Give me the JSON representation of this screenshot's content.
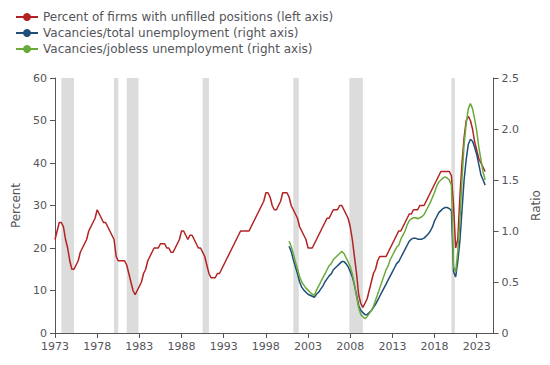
{
  "chart_data": {
    "type": "line",
    "xlabel": null,
    "ylabel": "Percent",
    "y2label": "Ratio",
    "xlim": [
      1973.0,
      2025.0
    ],
    "xticks": [
      1973,
      1978,
      1983,
      1988,
      1993,
      1998,
      2003,
      2008,
      2013,
      2018,
      2023
    ],
    "ylim": [
      0,
      60
    ],
    "yticks": [
      0,
      10,
      20,
      30,
      40,
      50,
      60
    ],
    "y2lim": [
      0,
      2.5
    ],
    "y2ticks": [
      0,
      0.5,
      {
        "value": 1,
        "label": "1.0"
      },
      1.5,
      {
        "value": 2,
        "label": "2.0"
      },
      2.5
    ],
    "grid": false,
    "legend": "upper left",
    "recessions": [
      [
        1973.75,
        1975.25
      ],
      [
        1980.0,
        1980.5
      ],
      [
        1981.5,
        1982.9
      ],
      [
        1990.5,
        1991.25
      ],
      [
        2001.25,
        2001.9
      ],
      [
        2007.9,
        2009.5
      ],
      [
        2020.0,
        2020.4
      ]
    ],
    "series": [
      {
        "name": "Percent of firms with unfilled positions (left axis)",
        "color": "#b22222",
        "axis": "y",
        "x": [
          1973.0,
          1973.25,
          1973.5,
          1973.75,
          1974.0,
          1974.25,
          1974.5,
          1974.75,
          1975.0,
          1975.25,
          1975.5,
          1975.75,
          1976.0,
          1976.25,
          1976.5,
          1976.75,
          1977.0,
          1977.25,
          1977.5,
          1977.75,
          1978.0,
          1978.25,
          1978.5,
          1978.75,
          1979.0,
          1979.25,
          1979.5,
          1979.75,
          1980.0,
          1980.25,
          1980.5,
          1980.75,
          1981.0,
          1981.25,
          1981.5,
          1981.75,
          1982.0,
          1982.25,
          1982.5,
          1982.75,
          1983.0,
          1983.25,
          1983.5,
          1983.75,
          1984.0,
          1984.25,
          1984.5,
          1984.75,
          1985.0,
          1985.25,
          1985.5,
          1985.75,
          1986.0,
          1986.25,
          1986.5,
          1986.75,
          1987.0,
          1987.25,
          1987.5,
          1987.75,
          1988.0,
          1988.25,
          1988.5,
          1988.75,
          1989.0,
          1989.25,
          1989.5,
          1989.75,
          1990.0,
          1990.25,
          1990.5,
          1990.75,
          1991.0,
          1991.25,
          1991.5,
          1991.75,
          1992.0,
          1992.25,
          1992.5,
          1992.75,
          1993.0,
          1993.25,
          1993.5,
          1993.75,
          1994.0,
          1994.25,
          1994.5,
          1994.75,
          1995.0,
          1995.25,
          1995.5,
          1995.75,
          1996.0,
          1996.25,
          1996.5,
          1996.75,
          1997.0,
          1997.25,
          1997.5,
          1997.75,
          1998.0,
          1998.25,
          1998.5,
          1998.75,
          1999.0,
          1999.25,
          1999.5,
          1999.75,
          2000.0,
          2000.25,
          2000.5,
          2000.75,
          2001.0,
          2001.25,
          2001.5,
          2001.75,
          2002.0,
          2002.25,
          2002.5,
          2002.75,
          2003.0,
          2003.25,
          2003.5,
          2003.75,
          2004.0,
          2004.25,
          2004.5,
          2004.75,
          2005.0,
          2005.25,
          2005.5,
          2005.75,
          2006.0,
          2006.25,
          2006.5,
          2006.75,
          2007.0,
          2007.25,
          2007.5,
          2007.75,
          2008.0,
          2008.25,
          2008.5,
          2008.75,
          2009.0,
          2009.25,
          2009.5,
          2009.75,
          2010.0,
          2010.25,
          2010.5,
          2010.75,
          2011.0,
          2011.25,
          2011.5,
          2011.75,
          2012.0,
          2012.25,
          2012.5,
          2012.75,
          2013.0,
          2013.25,
          2013.5,
          2013.75,
          2014.0,
          2014.25,
          2014.5,
          2014.75,
          2015.0,
          2015.25,
          2015.5,
          2015.75,
          2016.0,
          2016.25,
          2016.5,
          2016.75,
          2017.0,
          2017.25,
          2017.5,
          2017.75,
          2018.0,
          2018.25,
          2018.5,
          2018.75,
          2019.0,
          2019.25,
          2019.5,
          2019.75,
          2020.0,
          2020.25,
          2020.5,
          2020.75,
          2021.0,
          2021.25,
          2021.5,
          2021.75,
          2022.0,
          2022.25,
          2022.5,
          2022.75,
          2023.0,
          2023.25,
          2023.5,
          2023.75,
          2024.0
        ],
        "values": [
          22,
          24,
          26,
          26,
          25,
          22,
          20,
          17,
          15,
          15,
          16,
          17,
          19,
          20,
          21,
          22,
          24,
          25,
          26,
          27,
          29,
          28,
          27,
          26,
          26,
          25,
          24,
          23,
          22,
          18,
          17,
          17,
          17,
          17,
          16,
          14,
          12,
          10,
          9,
          10,
          11,
          12,
          14,
          15,
          17,
          18,
          19,
          20,
          20,
          20,
          21,
          21,
          21,
          20,
          20,
          19,
          19,
          20,
          21,
          22,
          24,
          24,
          23,
          22,
          23,
          23,
          22,
          21,
          20,
          20,
          19,
          18,
          16,
          14,
          13,
          13,
          13,
          14,
          14,
          15,
          16,
          17,
          18,
          19,
          20,
          21,
          22,
          23,
          24,
          24,
          24,
          24,
          24,
          25,
          26,
          27,
          28,
          29,
          30,
          31,
          33,
          33,
          32,
          30,
          29,
          29,
          30,
          31,
          33,
          33,
          33,
          32,
          30,
          29,
          28,
          27,
          25,
          24,
          23,
          22,
          20,
          20,
          20,
          21,
          22,
          23,
          24,
          25,
          26,
          27,
          27,
          28,
          29,
          29,
          29,
          30,
          30,
          29,
          28,
          27,
          25,
          22,
          18,
          14,
          9,
          7,
          6,
          7,
          8,
          10,
          12,
          14,
          15,
          17,
          18,
          18,
          18,
          18,
          19,
          20,
          21,
          22,
          23,
          24,
          24,
          25,
          26,
          27,
          28,
          28,
          29,
          29,
          29,
          30,
          30,
          30,
          31,
          32,
          33,
          34,
          35,
          36,
          37,
          38,
          38,
          38,
          38,
          38,
          37,
          30,
          20,
          22,
          32,
          40,
          46,
          50,
          51,
          50,
          48,
          45,
          43,
          41,
          40,
          39,
          38
        ]
      },
      {
        "name": "Vacancies/total unemployment (right axis)",
        "color": "#1f4e79",
        "axis": "y2",
        "x": [
          2000.75,
          2001.0,
          2001.25,
          2001.5,
          2001.75,
          2002.0,
          2002.25,
          2002.5,
          2002.75,
          2003.0,
          2003.25,
          2003.5,
          2003.75,
          2004.0,
          2004.25,
          2004.5,
          2004.75,
          2005.0,
          2005.25,
          2005.5,
          2005.75,
          2006.0,
          2006.25,
          2006.5,
          2006.75,
          2007.0,
          2007.25,
          2007.5,
          2007.75,
          2008.0,
          2008.25,
          2008.5,
          2008.75,
          2009.0,
          2009.25,
          2009.5,
          2009.75,
          2010.0,
          2010.25,
          2010.5,
          2010.75,
          2011.0,
          2011.25,
          2011.5,
          2011.75,
          2012.0,
          2012.25,
          2012.5,
          2012.75,
          2013.0,
          2013.25,
          2013.5,
          2013.75,
          2014.0,
          2014.25,
          2014.5,
          2014.75,
          2015.0,
          2015.25,
          2015.5,
          2015.75,
          2016.0,
          2016.25,
          2016.5,
          2016.75,
          2017.0,
          2017.25,
          2017.5,
          2017.75,
          2018.0,
          2018.25,
          2018.5,
          2018.75,
          2019.0,
          2019.25,
          2019.5,
          2019.75,
          2020.0,
          2020.25,
          2020.5,
          2020.75,
          2021.0,
          2021.25,
          2021.5,
          2021.75,
          2022.0,
          2022.25,
          2022.5,
          2022.75,
          2023.0,
          2023.25,
          2023.5,
          2023.75,
          2024.0
        ],
        "values": [
          0.85,
          0.8,
          0.72,
          0.65,
          0.58,
          0.5,
          0.45,
          0.42,
          0.4,
          0.38,
          0.37,
          0.36,
          0.35,
          0.38,
          0.4,
          0.43,
          0.46,
          0.5,
          0.53,
          0.56,
          0.58,
          0.62,
          0.64,
          0.66,
          0.68,
          0.7,
          0.7,
          0.68,
          0.65,
          0.6,
          0.55,
          0.47,
          0.37,
          0.27,
          0.22,
          0.2,
          0.18,
          0.18,
          0.2,
          0.22,
          0.25,
          0.28,
          0.32,
          0.36,
          0.4,
          0.44,
          0.48,
          0.52,
          0.56,
          0.6,
          0.64,
          0.68,
          0.7,
          0.74,
          0.78,
          0.82,
          0.86,
          0.9,
          0.92,
          0.93,
          0.93,
          0.92,
          0.92,
          0.92,
          0.93,
          0.95,
          0.97,
          1.0,
          1.04,
          1.1,
          1.14,
          1.18,
          1.2,
          1.22,
          1.23,
          1.23,
          1.22,
          1.2,
          0.6,
          0.55,
          0.7,
          0.9,
          1.2,
          1.5,
          1.7,
          1.85,
          1.9,
          1.88,
          1.82,
          1.75,
          1.65,
          1.55,
          1.5,
          1.45
        ]
      },
      {
        "name": "Vacancies/jobless unemployment (right axis)",
        "color": "#6aaa3a",
        "axis": "y2",
        "x": [
          2000.75,
          2001.0,
          2001.25,
          2001.5,
          2001.75,
          2002.0,
          2002.25,
          2002.5,
          2002.75,
          2003.0,
          2003.25,
          2003.5,
          2003.75,
          2004.0,
          2004.25,
          2004.5,
          2004.75,
          2005.0,
          2005.25,
          2005.5,
          2005.75,
          2006.0,
          2006.25,
          2006.5,
          2006.75,
          2007.0,
          2007.25,
          2007.5,
          2007.75,
          2008.0,
          2008.25,
          2008.5,
          2008.75,
          2009.0,
          2009.25,
          2009.5,
          2009.75,
          2010.0,
          2010.25,
          2010.5,
          2010.75,
          2011.0,
          2011.25,
          2011.5,
          2011.75,
          2012.0,
          2012.25,
          2012.5,
          2012.75,
          2013.0,
          2013.25,
          2013.5,
          2013.75,
          2014.0,
          2014.25,
          2014.5,
          2014.75,
          2015.0,
          2015.25,
          2015.5,
          2015.75,
          2016.0,
          2016.25,
          2016.5,
          2016.75,
          2017.0,
          2017.25,
          2017.5,
          2017.75,
          2018.0,
          2018.25,
          2018.5,
          2018.75,
          2019.0,
          2019.25,
          2019.5,
          2019.75,
          2020.0,
          2020.25,
          2020.5,
          2020.75,
          2021.0,
          2021.25,
          2021.5,
          2021.75,
          2022.0,
          2022.25,
          2022.5,
          2022.75,
          2023.0,
          2023.25,
          2023.5,
          2023.75,
          2024.0
        ],
        "values": [
          0.9,
          0.85,
          0.78,
          0.7,
          0.63,
          0.55,
          0.5,
          0.47,
          0.44,
          0.42,
          0.4,
          0.38,
          0.37,
          0.42,
          0.46,
          0.5,
          0.54,
          0.58,
          0.62,
          0.66,
          0.68,
          0.72,
          0.74,
          0.76,
          0.78,
          0.8,
          0.78,
          0.74,
          0.7,
          0.65,
          0.58,
          0.48,
          0.36,
          0.25,
          0.18,
          0.16,
          0.14,
          0.16,
          0.19,
          0.22,
          0.26,
          0.32,
          0.38,
          0.44,
          0.5,
          0.56,
          0.62,
          0.66,
          0.72,
          0.76,
          0.8,
          0.84,
          0.86,
          0.92,
          0.96,
          1.0,
          1.06,
          1.1,
          1.12,
          1.13,
          1.13,
          1.12,
          1.13,
          1.14,
          1.16,
          1.2,
          1.24,
          1.28,
          1.33,
          1.38,
          1.44,
          1.48,
          1.5,
          1.52,
          1.53,
          1.52,
          1.5,
          1.45,
          0.65,
          0.6,
          0.8,
          1.1,
          1.5,
          1.85,
          2.05,
          2.2,
          2.25,
          2.2,
          2.1,
          1.98,
          1.82,
          1.7,
          1.58,
          1.5
        ]
      }
    ]
  }
}
